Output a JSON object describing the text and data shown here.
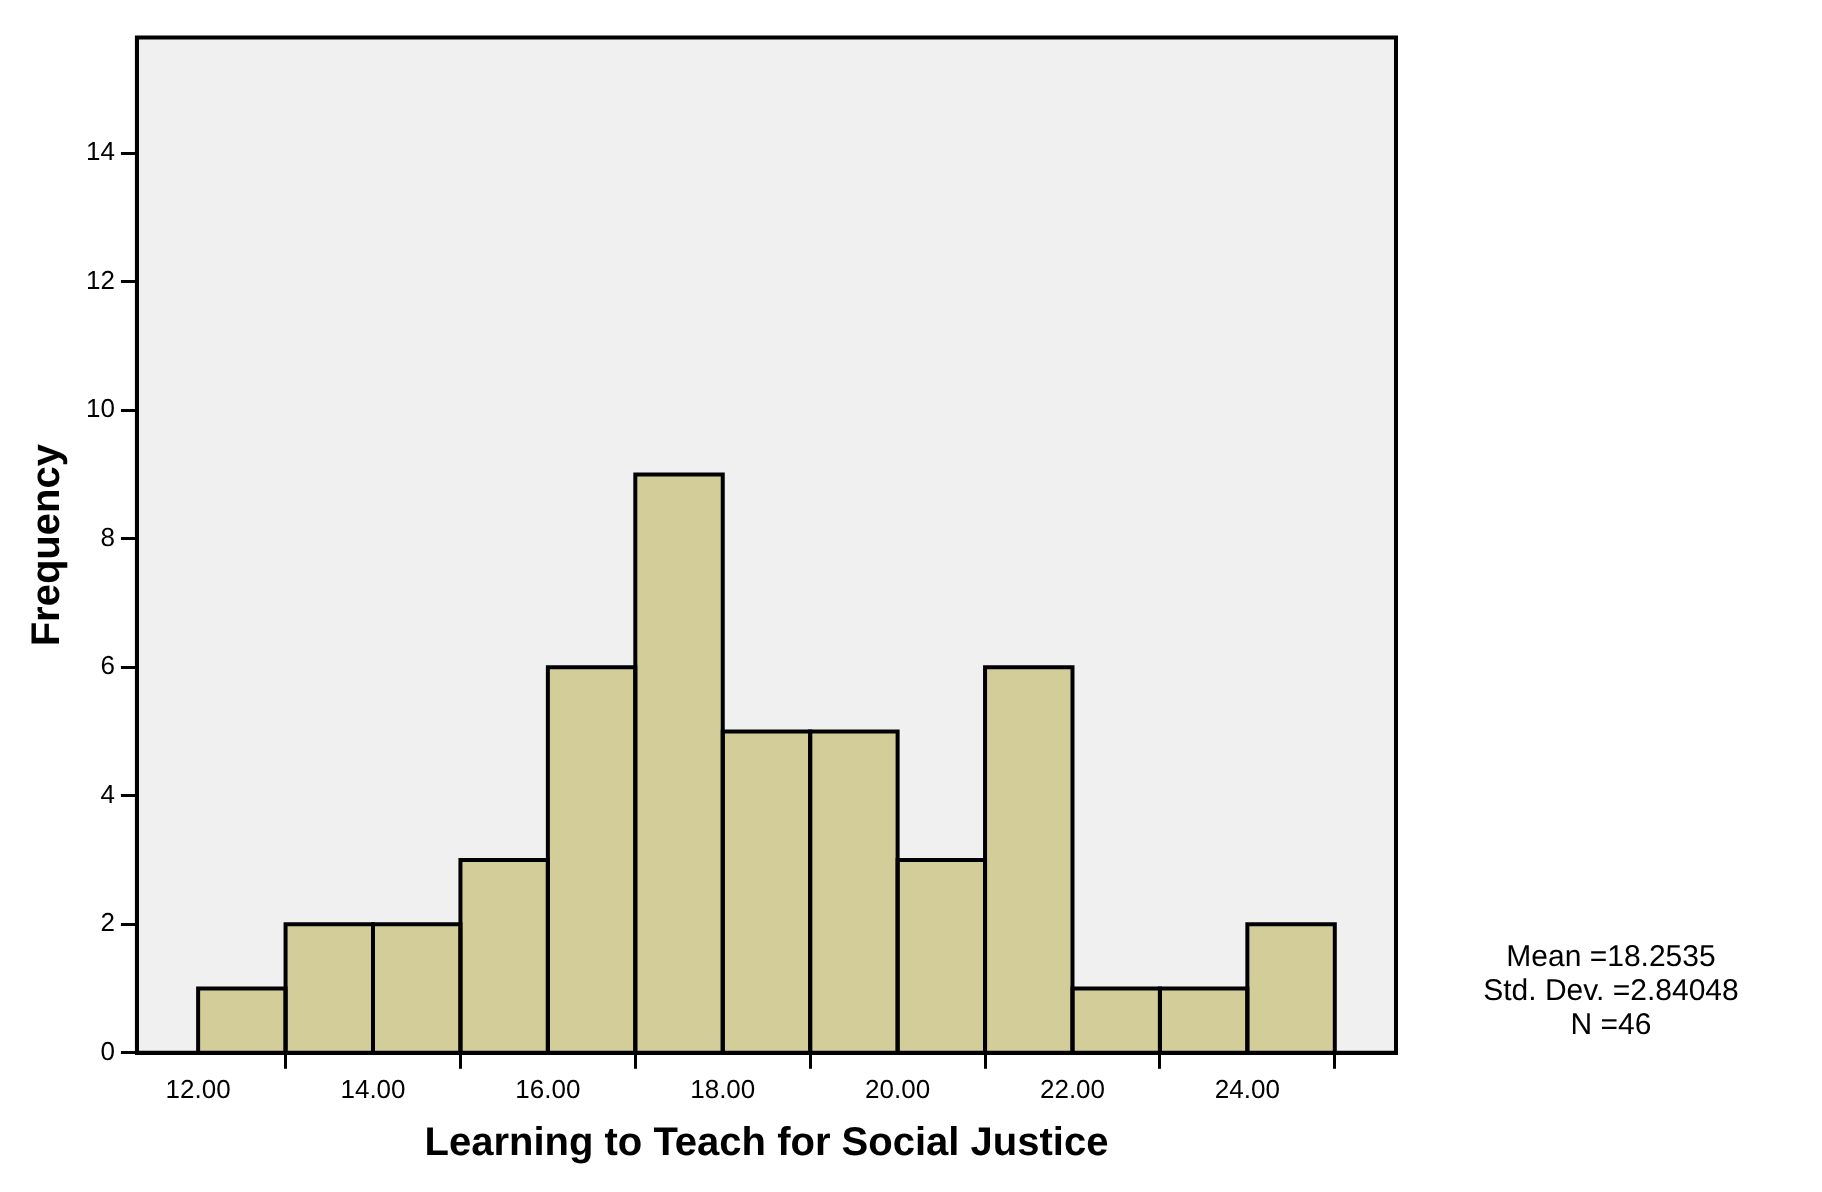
{
  "chart_data": {
    "type": "histogram",
    "xlabel": "Learning to Teach for Social Justice",
    "ylabel": "Frequency",
    "bins": [
      12,
      13,
      14,
      15,
      16,
      17,
      18,
      19,
      20,
      21,
      22,
      23,
      24,
      25
    ],
    "values": [
      1,
      2,
      2,
      3,
      6,
      9,
      5,
      5,
      3,
      6,
      1,
      1,
      2
    ],
    "color": "#d3ce99",
    "xlim": [
      11.3,
      25.7
    ],
    "xticks": [
      {
        "value": 12,
        "label": "12.00"
      },
      {
        "value": 14,
        "label": "14.00"
      },
      {
        "value": 16,
        "label": "16.00"
      },
      {
        "value": 18,
        "label": "18.00"
      },
      {
        "value": 20,
        "label": "20.00"
      },
      {
        "value": 22,
        "label": "22.00"
      },
      {
        "value": 24,
        "label": "24.00"
      }
    ],
    "ylim": [
      0,
      15.8
    ],
    "yticks": [
      0,
      2,
      4,
      6,
      8,
      10,
      12,
      14
    ],
    "grid": false,
    "legend": false,
    "annotations": [
      "Mean =18.2535",
      "Std. Dev. =2.84048",
      "N =46"
    ]
  }
}
